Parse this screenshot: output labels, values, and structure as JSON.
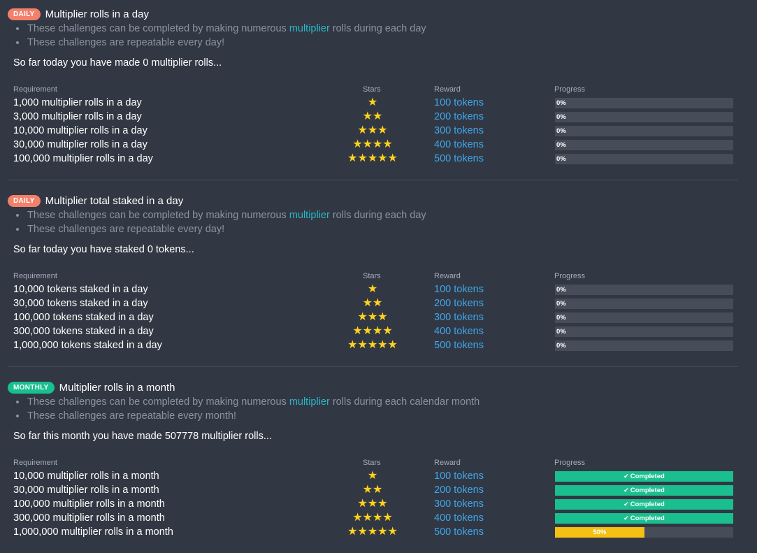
{
  "columns": {
    "requirement": "Requirement",
    "stars": "Stars",
    "reward": "Reward",
    "progress": "Progress"
  },
  "colors": {
    "daily_badge": "#f2806a",
    "monthly_badge": "#18c08f",
    "completed": "#1bbf8f",
    "partial": "#f5bf14",
    "star": "#ffd21f",
    "reward_link": "#3ea6ec"
  },
  "sections": [
    {
      "badge": "DAILY",
      "badge_type": "daily",
      "title": "Multiplier rolls in a day",
      "bullet1_pre": "These challenges can be completed by making numerous ",
      "bullet1_link": "multiplier",
      "bullet1_post": " rolls during each day",
      "bullet2": "These challenges are repeatable every day!",
      "summary": "So far today you have made 0 multiplier rolls...",
      "rows": [
        {
          "requirement": "1,000 multiplier rolls in a day",
          "stars": 1,
          "reward": "100 tokens",
          "progress": 0,
          "progress_label": "0%"
        },
        {
          "requirement": "3,000 multiplier rolls in a day",
          "stars": 2,
          "reward": "200 tokens",
          "progress": 0,
          "progress_label": "0%"
        },
        {
          "requirement": "10,000 multiplier rolls in a day",
          "stars": 3,
          "reward": "300 tokens",
          "progress": 0,
          "progress_label": "0%"
        },
        {
          "requirement": "30,000 multiplier rolls in a day",
          "stars": 4,
          "reward": "400 tokens",
          "progress": 0,
          "progress_label": "0%"
        },
        {
          "requirement": "100,000 multiplier rolls in a day",
          "stars": 5,
          "reward": "500 tokens",
          "progress": 0,
          "progress_label": "0%"
        }
      ]
    },
    {
      "badge": "DAILY",
      "badge_type": "daily",
      "title": "Multiplier total staked in a day",
      "bullet1_pre": "These challenges can be completed by making numerous ",
      "bullet1_link": "multiplier",
      "bullet1_post": " rolls during each day",
      "bullet2": "These challenges are repeatable every day!",
      "summary": "So far today you have staked 0 tokens...",
      "rows": [
        {
          "requirement": "10,000 tokens staked in a day",
          "stars": 1,
          "reward": "100 tokens",
          "progress": 0,
          "progress_label": "0%"
        },
        {
          "requirement": "30,000 tokens staked in a day",
          "stars": 2,
          "reward": "200 tokens",
          "progress": 0,
          "progress_label": "0%"
        },
        {
          "requirement": "100,000 tokens staked in a day",
          "stars": 3,
          "reward": "300 tokens",
          "progress": 0,
          "progress_label": "0%"
        },
        {
          "requirement": "300,000 tokens staked in a day",
          "stars": 4,
          "reward": "400 tokens",
          "progress": 0,
          "progress_label": "0%"
        },
        {
          "requirement": "1,000,000 tokens staked in a day",
          "stars": 5,
          "reward": "500 tokens",
          "progress": 0,
          "progress_label": "0%"
        }
      ]
    },
    {
      "badge": "MONTHLY",
      "badge_type": "monthly",
      "title": "Multiplier rolls in a month",
      "bullet1_pre": "These challenges can be completed by making numerous ",
      "bullet1_link": "multiplier",
      "bullet1_post": " rolls during each calendar month",
      "bullet2": "These challenges are repeatable every month!",
      "summary": "So far this month you have made 507778 multiplier rolls...",
      "rows": [
        {
          "requirement": "10,000 multiplier rolls in a month",
          "stars": 1,
          "reward": "100 tokens",
          "progress": 100,
          "progress_label": "Completed"
        },
        {
          "requirement": "30,000 multiplier rolls in a month",
          "stars": 2,
          "reward": "200 tokens",
          "progress": 100,
          "progress_label": "Completed"
        },
        {
          "requirement": "100,000 multiplier rolls in a month",
          "stars": 3,
          "reward": "300 tokens",
          "progress": 100,
          "progress_label": "Completed"
        },
        {
          "requirement": "300,000 multiplier rolls in a month",
          "stars": 4,
          "reward": "400 tokens",
          "progress": 100,
          "progress_label": "Completed"
        },
        {
          "requirement": "1,000,000 multiplier rolls in a month",
          "stars": 5,
          "reward": "500 tokens",
          "progress": 50,
          "progress_label": "50%"
        }
      ]
    }
  ]
}
